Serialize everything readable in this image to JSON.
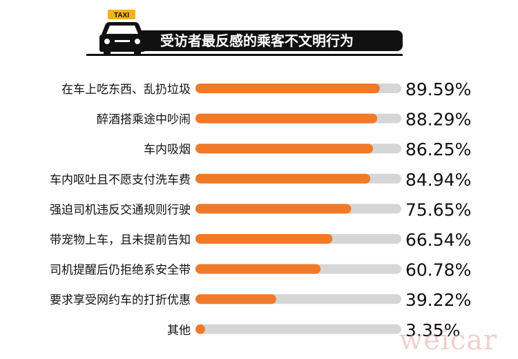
{
  "header": {
    "taxi_sign": "TAXI",
    "title": "受访者最反感的乘客不文明行为"
  },
  "watermark": "weicar",
  "colors": {
    "bar_fill": "#f07a2a",
    "bar_track": "#d6d6d6",
    "text": "#111111"
  },
  "chart_data": {
    "type": "bar",
    "orientation": "horizontal",
    "title": "受访者最反感的乘客不文明行为",
    "categories": [
      "在车上吃东西、乱扔垃圾",
      "醉酒搭乘途中吵闹",
      "车内吸烟",
      "车内呕吐且不愿支付洗车费",
      "强迫司机违反交通规则行驶",
      "带宠物上车，且未提前告知",
      "司机提醒后仍拒绝系安全带",
      "要求享受网约车的打折优惠",
      "其他"
    ],
    "values": [
      89.59,
      88.29,
      86.25,
      84.94,
      75.65,
      66.54,
      60.78,
      39.22,
      3.35
    ],
    "value_labels": [
      "89.59%",
      "88.29%",
      "86.25%",
      "84.94%",
      "75.65%",
      "66.54%",
      "60.78%",
      "39.22%",
      "3.35%"
    ],
    "xlim": [
      0,
      100
    ],
    "grid": false,
    "legend": "none"
  }
}
